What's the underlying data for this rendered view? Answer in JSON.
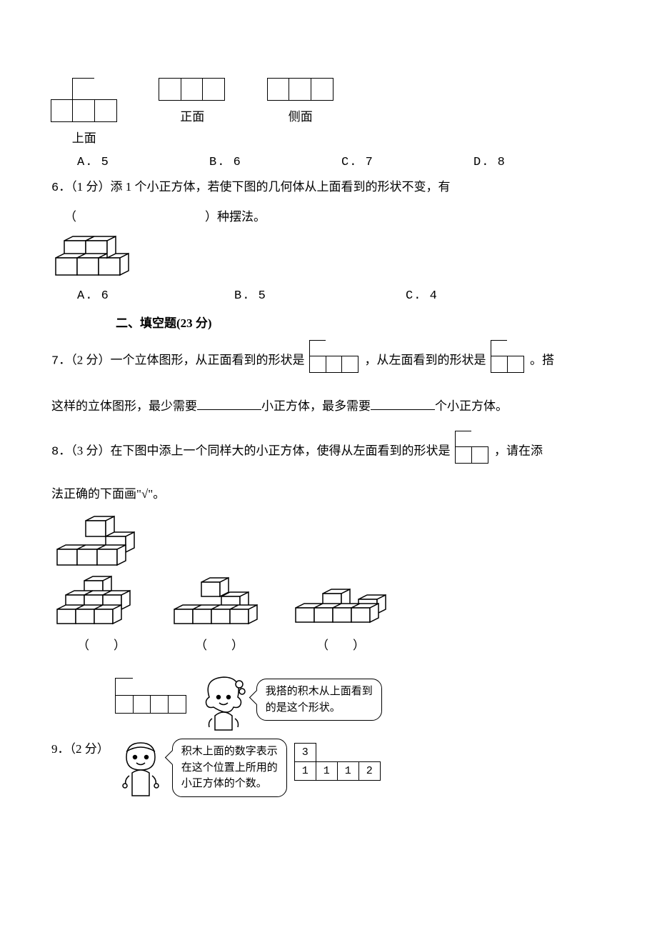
{
  "q5": {
    "views": [
      {
        "label": "上面",
        "rows": [
          [
            0,
            1,
            0
          ],
          [
            1,
            1,
            1
          ]
        ]
      },
      {
        "label": "正面",
        "rows": [
          [
            1,
            1,
            1
          ]
        ]
      },
      {
        "label": "侧面",
        "rows": [
          [
            1,
            1,
            1
          ]
        ]
      }
    ],
    "options": {
      "A": "A. 5",
      "B": "B. 6",
      "C": "C. 7",
      "D": "D. 8"
    }
  },
  "q6": {
    "number": "6．",
    "points": "（1 分）",
    "text_before_blank": "添 1 个小正方体，若使下图的几何体从上面看到的形状不变，有",
    "blank_prefix": "（",
    "blank_suffix": "）种摆法。",
    "options": {
      "A": "A. 6",
      "B": "B. 5",
      "C": "C. 4"
    }
  },
  "section2_title": "二、填空题(23 分)",
  "q7": {
    "number": "7．",
    "points": "（2 分）",
    "t1": "一个立体图形，从正面看到的形状是",
    "front_shape_rows": [
      [
        1,
        0,
        0
      ],
      [
        1,
        1,
        1
      ]
    ],
    "t2": "，从左面看到的形状是",
    "left_shape_rows": [
      [
        1,
        0
      ],
      [
        1,
        1
      ]
    ],
    "t3": "。搭",
    "line2a": "这样的立体图形，最少需要",
    "line2b": "小正方体，最多需要",
    "line2c": "个小正方体。"
  },
  "q8": {
    "number": "8．",
    "points": "（3 分）",
    "t1": "在下图中添上一个同样大的小正方体，使得从左面看到的形状是",
    "left_shape_rows": [
      [
        1,
        0
      ],
      [
        1,
        1
      ]
    ],
    "t2": "，请在添",
    "line2": "法正确的下面画\"√\"。",
    "paren": "（　　）"
  },
  "q9": {
    "number": "9．",
    "points": "（2 分）",
    "girl_speech_l1": "我搭的积木从上面看到",
    "girl_speech_l2": "的是这个形状。",
    "top_shape_rows": [
      [
        1,
        0,
        0,
        0
      ],
      [
        1,
        1,
        1,
        1
      ]
    ],
    "boy_speech_l1": "积木上面的数字表示",
    "boy_speech_l2": "在这个位置上所用的",
    "boy_speech_l3": "小正方体的个数。",
    "table": {
      "rows": [
        [
          "3",
          "",
          "",
          ""
        ],
        [
          "1",
          "1",
          "1",
          "2"
        ]
      ]
    }
  },
  "colors": {
    "stroke": "#000000",
    "bg": "#ffffff"
  }
}
